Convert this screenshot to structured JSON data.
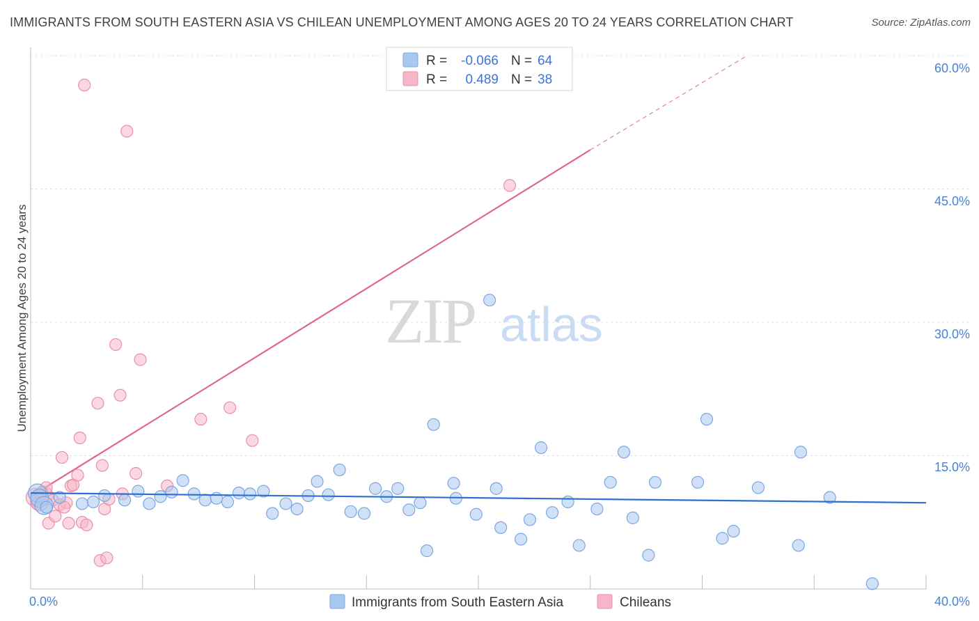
{
  "header": {
    "title": "IMMIGRANTS FROM SOUTH EASTERN ASIA VS CHILEAN UNEMPLOYMENT AMONG AGES 20 TO 24 YEARS CORRELATION CHART",
    "source": "Source: ZipAtlas.com"
  },
  "watermark": {
    "zip": "ZIP",
    "atlas": "atlas"
  },
  "colors": {
    "blue_fill": "#a9c8f0",
    "blue_stroke": "#7ba7e0",
    "blue_line": "#2d6fd0",
    "pink_fill": "#f5b6c9",
    "pink_stroke": "#e890aa",
    "pink_line": "#e06690",
    "grid": "#dddddd",
    "axis_label": "#4a7fd6"
  },
  "legend": {
    "rows": [
      {
        "r_label": "R =",
        "r_value": "-0.066",
        "n_label": "N =",
        "n_value": "64"
      },
      {
        "r_label": "R =",
        "r_value": "0.489",
        "n_label": "N =",
        "n_value": "38"
      }
    ]
  },
  "chart_data": {
    "type": "scatter",
    "title": "IMMIGRANTS FROM SOUTH EASTERN ASIA VS CHILEAN UNEMPLOYMENT AMONG AGES 20 TO 24 YEARS CORRELATION CHART",
    "xlabel": "",
    "ylabel": "Unemployment Among Ages 20 to 24 years",
    "xlim": [
      0,
      40
    ],
    "ylim": [
      0,
      60
    ],
    "x_tick_labels": [
      "0.0%",
      "40.0%"
    ],
    "y_ticks": [
      15,
      30,
      45,
      60
    ],
    "y_tick_labels": [
      "15.0%",
      "30.0%",
      "45.0%",
      "60.0%"
    ],
    "grid": true,
    "series": [
      {
        "name": "Immigrants from South Eastern Asia",
        "color": "blue",
        "trend": {
          "x0": 0.0,
          "y0": 10.8,
          "x1": 40.0,
          "y1": 9.7
        },
        "points": [
          [
            0.3,
            10.8
          ],
          [
            0.4,
            10.2
          ],
          [
            0.6,
            9.4
          ],
          [
            1.3,
            10.3
          ],
          [
            2.3,
            9.6
          ],
          [
            2.8,
            9.8
          ],
          [
            3.3,
            10.5
          ],
          [
            4.2,
            10.0
          ],
          [
            4.8,
            11.0
          ],
          [
            5.3,
            9.6
          ],
          [
            5.8,
            10.4
          ],
          [
            6.3,
            10.9
          ],
          [
            6.8,
            12.2
          ],
          [
            7.3,
            10.7
          ],
          [
            7.8,
            10.0
          ],
          [
            8.3,
            10.2
          ],
          [
            8.8,
            9.8
          ],
          [
            9.3,
            10.8
          ],
          [
            9.8,
            10.7
          ],
          [
            10.4,
            11.0
          ],
          [
            10.8,
            8.5
          ],
          [
            11.4,
            9.6
          ],
          [
            11.9,
            9.0
          ],
          [
            12.4,
            10.5
          ],
          [
            12.8,
            12.1
          ],
          [
            13.3,
            10.6
          ],
          [
            13.8,
            13.4
          ],
          [
            14.3,
            8.7
          ],
          [
            14.9,
            8.5
          ],
          [
            15.4,
            11.3
          ],
          [
            15.9,
            10.4
          ],
          [
            16.4,
            11.3
          ],
          [
            16.9,
            8.9
          ],
          [
            17.4,
            9.7
          ],
          [
            17.7,
            4.3
          ],
          [
            18.0,
            18.5
          ],
          [
            18.9,
            11.9
          ],
          [
            19.0,
            10.2
          ],
          [
            19.9,
            8.4
          ],
          [
            20.5,
            32.5
          ],
          [
            20.8,
            11.3
          ],
          [
            21.0,
            6.9
          ],
          [
            21.9,
            5.6
          ],
          [
            22.3,
            7.8
          ],
          [
            22.8,
            15.9
          ],
          [
            23.3,
            8.6
          ],
          [
            24.0,
            9.8
          ],
          [
            24.5,
            4.9
          ],
          [
            25.3,
            9.0
          ],
          [
            25.9,
            12.0
          ],
          [
            26.5,
            15.4
          ],
          [
            26.9,
            8.0
          ],
          [
            27.6,
            3.8
          ],
          [
            27.9,
            12.0
          ],
          [
            29.8,
            12.0
          ],
          [
            30.2,
            19.1
          ],
          [
            30.9,
            5.7
          ],
          [
            31.4,
            6.5
          ],
          [
            32.5,
            11.4
          ],
          [
            34.3,
            4.9
          ],
          [
            34.4,
            15.4
          ],
          [
            35.7,
            10.3
          ],
          [
            37.6,
            0.6
          ],
          [
            0.7,
            9.2
          ]
        ]
      },
      {
        "name": "Chileans",
        "color": "pink",
        "trend": {
          "x0": 0.0,
          "y0": 10.4,
          "x1": 25.0,
          "y1": 49.4,
          "dash_x1": 32.0,
          "dash_y1": 60.0
        },
        "points": [
          [
            0.2,
            10.3
          ],
          [
            0.4,
            9.8
          ],
          [
            0.6,
            10.5
          ],
          [
            0.7,
            11.4
          ],
          [
            0.8,
            7.4
          ],
          [
            1.0,
            10.0
          ],
          [
            1.1,
            8.2
          ],
          [
            1.3,
            9.5
          ],
          [
            1.4,
            14.8
          ],
          [
            1.6,
            9.7
          ],
          [
            1.7,
            7.4
          ],
          [
            1.8,
            11.6
          ],
          [
            1.9,
            11.7
          ],
          [
            2.1,
            12.8
          ],
          [
            2.2,
            17.0
          ],
          [
            2.3,
            7.5
          ],
          [
            2.5,
            7.2
          ],
          [
            2.4,
            56.7
          ],
          [
            3.0,
            20.9
          ],
          [
            3.1,
            3.2
          ],
          [
            3.2,
            13.9
          ],
          [
            3.3,
            9.0
          ],
          [
            3.4,
            3.5
          ],
          [
            3.5,
            10.1
          ],
          [
            3.8,
            27.5
          ],
          [
            4.0,
            21.8
          ],
          [
            4.1,
            10.7
          ],
          [
            4.3,
            51.5
          ],
          [
            4.7,
            13.0
          ],
          [
            4.9,
            25.8
          ],
          [
            6.1,
            11.6
          ],
          [
            7.6,
            19.1
          ],
          [
            8.9,
            20.4
          ],
          [
            9.9,
            16.7
          ],
          [
            21.4,
            45.4
          ],
          [
            0.3,
            9.6
          ],
          [
            0.5,
            10.9
          ],
          [
            1.5,
            9.2
          ]
        ]
      }
    ]
  },
  "bottom_legend": {
    "items": [
      {
        "label": "Immigrants from South Eastern Asia"
      },
      {
        "label": "Chileans"
      }
    ]
  }
}
